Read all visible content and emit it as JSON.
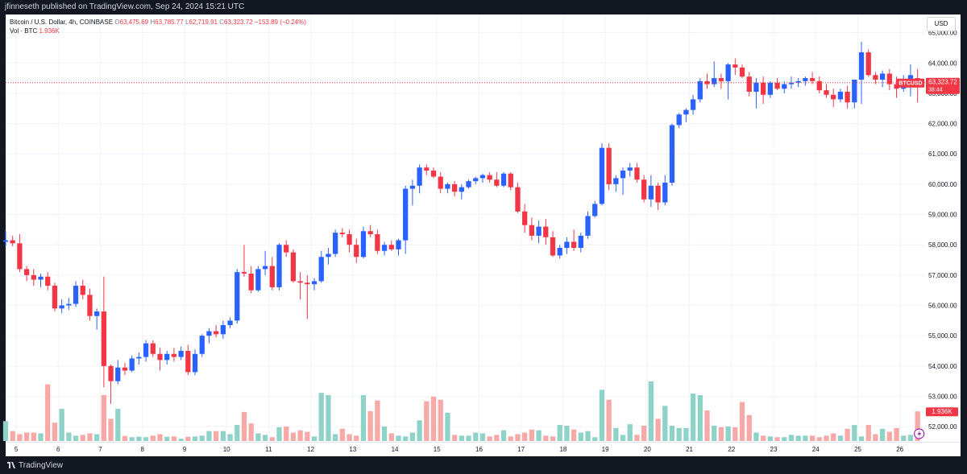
{
  "header": {
    "published": "jfinneseth published on TradingView.com, Sep 24, 2024 15:21 UTC"
  },
  "legend": {
    "symbol": "Bitcoin / U.S. Dollar, 4h, COINBASE",
    "o_label": "O",
    "o_value": "63,475.69",
    "h_label": "H",
    "h_value": "63,785.77",
    "l_label": "L",
    "l_value": "62,719.91",
    "c_label": "C",
    "c_value": "63,323.72",
    "change": "−153.89 (−0.24%)",
    "vol_label": "Vol · BTC",
    "vol_value": "1.936K"
  },
  "currency_label": "USD",
  "footer": {
    "brand": "TradingView"
  },
  "colors": {
    "up": "#2962ff",
    "down": "#f23645",
    "vol_up": "#8fd3c8",
    "vol_down": "#f7a9a7",
    "grid": "#f0f3fa",
    "axis_text": "#131722"
  },
  "chart_data": {
    "type": "candlestick",
    "symbol": "BTCUSD",
    "interval": "4h",
    "exchange": "COINBASE",
    "last_price": "63,323.72",
    "countdown": "38:44",
    "last_volume": "1.936K",
    "ylim": [
      51500,
      65600
    ],
    "y_ticks": [
      52000,
      53000,
      54000,
      55000,
      56000,
      57000,
      58000,
      59000,
      60000,
      61000,
      62000,
      63000,
      64000,
      65000
    ],
    "y_tick_labels": [
      "52,000.00",
      "53,000.00",
      "54,000.00",
      "55,000.00",
      "56,000.00",
      "57,000.00",
      "58,000.00",
      "59,000.00",
      "60,000.00",
      "61,000.00",
      "62,000.00",
      "63,000.00",
      "64,000.00",
      "65,000.00"
    ],
    "x_range": [
      4.75,
      26.6
    ],
    "x_ticks": [
      5,
      6,
      7,
      8,
      9,
      10,
      11,
      12,
      13,
      14,
      15,
      16,
      17,
      18,
      19,
      20,
      21,
      22,
      23,
      24,
      25,
      26
    ],
    "x_tick_labels": [
      "5",
      "6",
      "7",
      "8",
      "9",
      "10",
      "11",
      "12",
      "13",
      "14",
      "15",
      "16",
      "17",
      "18",
      "19",
      "20",
      "21",
      "22",
      "23",
      "24",
      "25",
      "26"
    ],
    "candle_step_days": 0.1667,
    "first_candle_day": 4.75,
    "volume_max": 5000,
    "grid": true,
    "ohlc": [
      [
        58100,
        58450,
        57950,
        58150
      ],
      [
        58150,
        58300,
        57950,
        58050
      ],
      [
        58050,
        58350,
        57100,
        57200
      ],
      [
        57200,
        57300,
        56800,
        57000
      ],
      [
        57000,
        57200,
        56650,
        56850
      ],
      [
        56850,
        57050,
        56600,
        56950
      ],
      [
        56950,
        57100,
        56500,
        56650
      ],
      [
        56650,
        56750,
        55800,
        55900
      ],
      [
        55900,
        56200,
        55750,
        56000
      ],
      [
        56000,
        56250,
        55850,
        56050
      ],
      [
        56050,
        56800,
        55950,
        56650
      ],
      [
        56650,
        56850,
        56200,
        56350
      ],
      [
        56350,
        56550,
        55500,
        55650
      ],
      [
        55650,
        55900,
        55200,
        55800
      ],
      [
        55800,
        56950,
        53300,
        54000
      ],
      [
        54000,
        54050,
        52750,
        53500
      ],
      [
        53500,
        54200,
        53400,
        53950
      ],
      [
        53950,
        54100,
        53700,
        53850
      ],
      [
        53850,
        54350,
        53800,
        54250
      ],
      [
        54250,
        54450,
        54050,
        54300
      ],
      [
        54300,
        54850,
        54150,
        54750
      ],
      [
        54750,
        54850,
        54300,
        54400
      ],
      [
        54400,
        54600,
        53850,
        54200
      ],
      [
        54200,
        54500,
        54050,
        54400
      ],
      [
        54400,
        54600,
        54150,
        54300
      ],
      [
        54300,
        54650,
        54200,
        54500
      ],
      [
        54500,
        54700,
        53700,
        53800
      ],
      [
        53800,
        54550,
        53700,
        54400
      ],
      [
        54400,
        55050,
        54300,
        55000
      ],
      [
        55000,
        55250,
        54750,
        55150
      ],
      [
        55150,
        55350,
        54950,
        55050
      ],
      [
        55050,
        55500,
        54900,
        55350
      ],
      [
        55350,
        55600,
        55250,
        55500
      ],
      [
        55500,
        57200,
        55400,
        57100
      ],
      [
        57100,
        58000,
        56950,
        57050
      ],
      [
        57050,
        57300,
        56400,
        56500
      ],
      [
        56500,
        57300,
        56450,
        57200
      ],
      [
        57200,
        57800,
        57000,
        57300
      ],
      [
        57300,
        57600,
        56500,
        56600
      ],
      [
        56600,
        58050,
        56500,
        58000
      ],
      [
        58000,
        58150,
        57600,
        57750
      ],
      [
        57750,
        57850,
        56750,
        56800
      ],
      [
        56800,
        57100,
        56200,
        56750
      ],
      [
        56750,
        57000,
        55550,
        56700
      ],
      [
        56700,
        56900,
        56500,
        56800
      ],
      [
        56800,
        57800,
        56750,
        57600
      ],
      [
        57600,
        57900,
        57350,
        57700
      ],
      [
        57700,
        58500,
        57600,
        58400
      ],
      [
        58400,
        58550,
        58250,
        58350
      ],
      [
        58350,
        58500,
        57750,
        58000
      ],
      [
        58000,
        58200,
        57400,
        57600
      ],
      [
        57600,
        58600,
        57550,
        58450
      ],
      [
        58450,
        58650,
        58250,
        58350
      ],
      [
        58350,
        58500,
        57700,
        57800
      ],
      [
        57800,
        58100,
        57650,
        58000
      ],
      [
        58000,
        58150,
        57800,
        57850
      ],
      [
        57850,
        58200,
        57650,
        58150
      ],
      [
        58150,
        59950,
        57700,
        59850
      ],
      [
        59850,
        60150,
        59300,
        59950
      ],
      [
        59950,
        60650,
        59700,
        60550
      ],
      [
        60550,
        60650,
        60300,
        60450
      ],
      [
        60450,
        60550,
        60200,
        60250
      ],
      [
        60250,
        60400,
        59700,
        59850
      ],
      [
        59850,
        60050,
        59700,
        60000
      ],
      [
        60000,
        60100,
        59600,
        59750
      ],
      [
        59750,
        60000,
        59500,
        59900
      ],
      [
        59900,
        60150,
        59850,
        60100
      ],
      [
        60100,
        60250,
        60000,
        60200
      ],
      [
        60200,
        60350,
        60050,
        60300
      ],
      [
        60300,
        60400,
        60050,
        60150
      ],
      [
        60150,
        60400,
        59900,
        59950
      ],
      [
        59950,
        60400,
        59900,
        60350
      ],
      [
        60350,
        60400,
        59800,
        59900
      ],
      [
        59900,
        60050,
        59050,
        59100
      ],
      [
        59100,
        59350,
        58400,
        58650
      ],
      [
        58650,
        58900,
        58150,
        58300
      ],
      [
        58300,
        58800,
        58050,
        58600
      ],
      [
        58600,
        58850,
        58000,
        58250
      ],
      [
        58250,
        58450,
        57600,
        57650
      ],
      [
        57650,
        58000,
        57550,
        57900
      ],
      [
        57900,
        58250,
        57700,
        58100
      ],
      [
        58100,
        58500,
        57800,
        57900
      ],
      [
        57900,
        58400,
        57750,
        58300
      ],
      [
        58300,
        59100,
        58200,
        58950
      ],
      [
        58950,
        59450,
        58900,
        59350
      ],
      [
        59350,
        61350,
        59300,
        61200
      ],
      [
        61200,
        61350,
        59800,
        60000
      ],
      [
        60000,
        60300,
        59750,
        60200
      ],
      [
        60200,
        60550,
        59650,
        60450
      ],
      [
        60450,
        60700,
        60250,
        60550
      ],
      [
        60550,
        60700,
        60050,
        60150
      ],
      [
        60150,
        60300,
        59400,
        59500
      ],
      [
        59500,
        60300,
        59250,
        59950
      ],
      [
        59950,
        60050,
        59150,
        59400
      ],
      [
        59400,
        60300,
        59300,
        60050
      ],
      [
        60050,
        62000,
        59950,
        61950
      ],
      [
        61950,
        62350,
        61850,
        62300
      ],
      [
        62300,
        62500,
        62050,
        62450
      ],
      [
        62450,
        62950,
        62300,
        62800
      ],
      [
        62800,
        63500,
        62700,
        63400
      ],
      [
        63400,
        63650,
        63150,
        63300
      ],
      [
        63300,
        64050,
        63200,
        63500
      ],
      [
        63500,
        63650,
        63150,
        63400
      ],
      [
        63400,
        64000,
        62800,
        63950
      ],
      [
        63950,
        64150,
        63600,
        63850
      ],
      [
        63850,
        63950,
        63500,
        63550
      ],
      [
        63550,
        63700,
        62900,
        63050
      ],
      [
        63050,
        63500,
        62500,
        63350
      ],
      [
        63350,
        63550,
        62650,
        62950
      ],
      [
        62950,
        63400,
        62850,
        63350
      ],
      [
        63350,
        63500,
        63100,
        63150
      ],
      [
        63150,
        63400,
        63000,
        63300
      ],
      [
        63300,
        63550,
        63150,
        63350
      ],
      [
        63350,
        63500,
        63200,
        63400
      ],
      [
        63400,
        63550,
        63250,
        63500
      ],
      [
        63500,
        63700,
        63300,
        63400
      ],
      [
        63400,
        63550,
        63000,
        63100
      ],
      [
        63100,
        63300,
        62850,
        62950
      ],
      [
        62950,
        63150,
        62550,
        62800
      ],
      [
        62800,
        63150,
        62700,
        63050
      ],
      [
        63050,
        63250,
        62500,
        62700
      ],
      [
        62700,
        63350,
        62500,
        63450
      ],
      [
        63450,
        64700,
        62650,
        64350
      ],
      [
        64350,
        64450,
        63550,
        63600
      ],
      [
        63600,
        63700,
        63300,
        63450
      ],
      [
        63450,
        63750,
        63200,
        63650
      ],
      [
        63650,
        63800,
        63100,
        63300
      ],
      [
        63300,
        63550,
        62850,
        63150
      ],
      [
        63150,
        63600,
        63050,
        63400
      ],
      [
        63400,
        63950,
        62900,
        63600
      ],
      [
        63500,
        63800,
        62700,
        63350
      ]
    ],
    "volume": [
      1300,
      650,
      450,
      550,
      550,
      500,
      3700,
      1200,
      2100,
      550,
      350,
      400,
      500,
      450,
      3000,
      1450,
      2100,
      330,
      250,
      280,
      250,
      350,
      450,
      280,
      300,
      150,
      280,
      300,
      350,
      650,
      650,
      650,
      450,
      1050,
      1900,
      1150,
      500,
      400,
      250,
      900,
      950,
      550,
      700,
      600,
      300,
      3150,
      3000,
      450,
      800,
      450,
      350,
      3000,
      1950,
      2650,
      950,
      500,
      350,
      300,
      550,
      1350,
      2600,
      2900,
      2700,
      1850,
      400,
      350,
      350,
      550,
      500,
      300,
      400,
      700,
      300,
      450,
      550,
      750,
      700,
      350,
      300,
      1050,
      1000,
      750,
      550,
      650,
      250,
      3350,
      2700,
      850,
      400,
      1100,
      400,
      1000,
      3900,
      1450,
      2300,
      1000,
      850,
      850,
      3100,
      3000,
      2000,
      1000,
      900,
      950,
      900,
      2550,
      1700,
      550,
      350,
      300,
      250,
      250,
      400,
      350,
      350,
      350,
      250,
      350,
      500,
      350,
      800,
      1050,
      300,
      1050,
      450,
      800,
      600,
      850,
      350,
      400,
      1936
    ]
  }
}
